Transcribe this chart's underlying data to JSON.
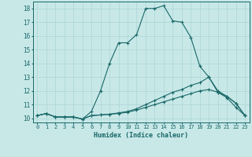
{
  "xlabel": "Humidex (Indice chaleur)",
  "bg_color": "#c8e8e8",
  "grid_color": "#b0d8d8",
  "line_color": "#1a6868",
  "xlim": [
    -0.5,
    23.5
  ],
  "ylim": [
    9.7,
    18.5
  ],
  "xticks": [
    0,
    1,
    2,
    3,
    4,
    5,
    6,
    7,
    8,
    9,
    10,
    11,
    12,
    13,
    14,
    15,
    16,
    17,
    18,
    19,
    20,
    21,
    22,
    23
  ],
  "yticks": [
    10,
    11,
    12,
    13,
    14,
    15,
    16,
    17,
    18
  ],
  "curve1_x": [
    0,
    1,
    2,
    3,
    4,
    5,
    6,
    7,
    8,
    9,
    10,
    11,
    12,
    13,
    14,
    15,
    16,
    17,
    18,
    19,
    20,
    21,
    22,
    23
  ],
  "curve1_y": [
    10.2,
    10.35,
    10.1,
    10.1,
    10.1,
    9.95,
    10.5,
    12.0,
    14.0,
    15.5,
    15.5,
    16.1,
    18.0,
    18.0,
    18.2,
    17.1,
    17.0,
    15.9,
    13.8,
    13.0,
    11.9,
    11.6,
    11.1,
    10.2
  ],
  "curve2_x": [
    0,
    1,
    2,
    3,
    4,
    5,
    6,
    7,
    8,
    9,
    10,
    11,
    12,
    13,
    14,
    15,
    16,
    17,
    18,
    19,
    20,
    21,
    22,
    23
  ],
  "curve2_y": [
    10.2,
    10.35,
    10.1,
    10.1,
    10.1,
    9.95,
    10.2,
    10.25,
    10.3,
    10.4,
    10.5,
    10.7,
    11.0,
    11.3,
    11.6,
    11.9,
    12.1,
    12.4,
    12.6,
    13.0,
    12.0,
    11.6,
    11.1,
    10.2
  ],
  "curve3_x": [
    0,
    1,
    2,
    3,
    4,
    5,
    6,
    7,
    8,
    9,
    10,
    11,
    12,
    13,
    14,
    15,
    16,
    17,
    18,
    19,
    20,
    21,
    22,
    23
  ],
  "curve3_y": [
    10.2,
    10.35,
    10.1,
    10.1,
    10.1,
    9.95,
    10.2,
    10.25,
    10.3,
    10.35,
    10.45,
    10.6,
    10.8,
    11.0,
    11.2,
    11.4,
    11.6,
    11.8,
    12.0,
    12.1,
    11.9,
    11.5,
    10.8,
    10.2
  ]
}
